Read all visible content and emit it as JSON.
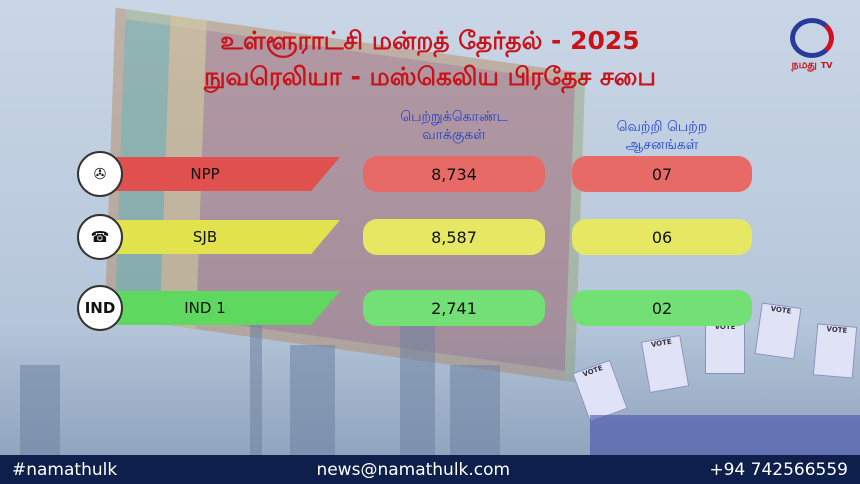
{
  "title_line1": "உள்ளூராட்சி மன்றத் தேர்தல் - 2025",
  "title_line2": "நுவரெலியா - மஸ்கெலிய பிரதேச சபை",
  "col_votes": [
    "பெற்றுக்கொண்ட",
    "வாக்குகள்"
  ],
  "col_seats": [
    "வெற்றி பெற்ற",
    "ஆசனங்கள்"
  ],
  "logo": {
    "text": "நமது",
    "suffix": "TV"
  },
  "rows": [
    {
      "party": "NPP",
      "symbol": "compass-icon",
      "votes": "8,734",
      "seats": "07",
      "color": "#e0504f",
      "pill": "#e86a66"
    },
    {
      "party": "SJB",
      "symbol": "telephone-icon",
      "votes": "8,587",
      "seats": "06",
      "color": "#e2e34c",
      "pill": "#e6e864"
    },
    {
      "party": "IND 1",
      "symbol_text": "IND",
      "votes": "2,741",
      "seats": "02",
      "color": "#5fd860",
      "pill": "#72e074"
    }
  ],
  "vote_label": "VOTE",
  "footer": {
    "hashtag": "#namathulk",
    "email": "news@namathulk.com",
    "phone": "+94 742566559"
  }
}
